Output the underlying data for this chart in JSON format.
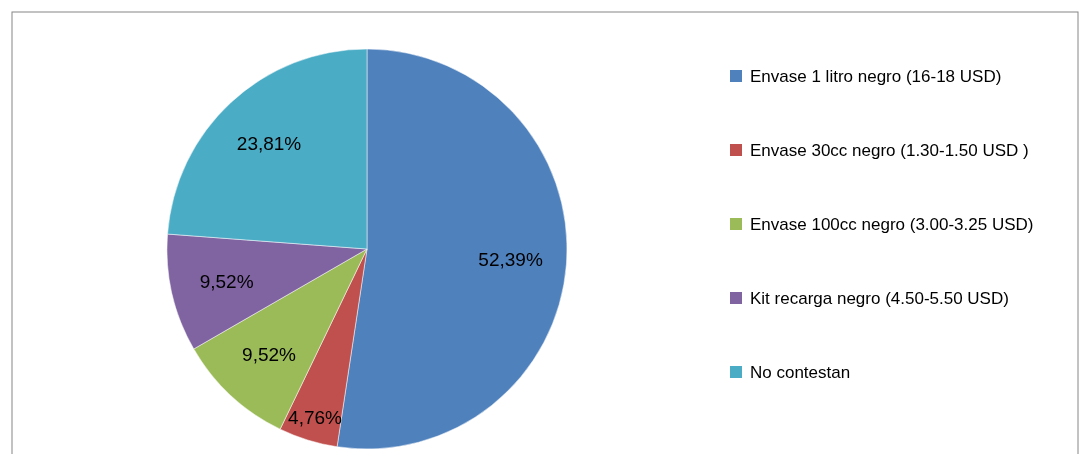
{
  "chart_data": {
    "type": "pie",
    "categories": [
      "Envase 1 litro negro (16-18 USD)",
      "Envase 30cc negro (1.30-1.50 USD )",
      "Envase 100cc negro (3.00-3.25 USD)",
      "Kit recarga negro (4.50-5.50 USD)",
      "No contestan"
    ],
    "values": [
      52.39,
      4.76,
      9.52,
      9.52,
      23.81
    ],
    "value_labels": [
      "52,39%",
      "4,76%",
      "9,52%",
      "9,52%",
      "23,81%"
    ],
    "colors": [
      "#4f81bd",
      "#c0504d",
      "#9bbb59",
      "#8064a2",
      "#4bacc6"
    ],
    "legend": "right"
  }
}
